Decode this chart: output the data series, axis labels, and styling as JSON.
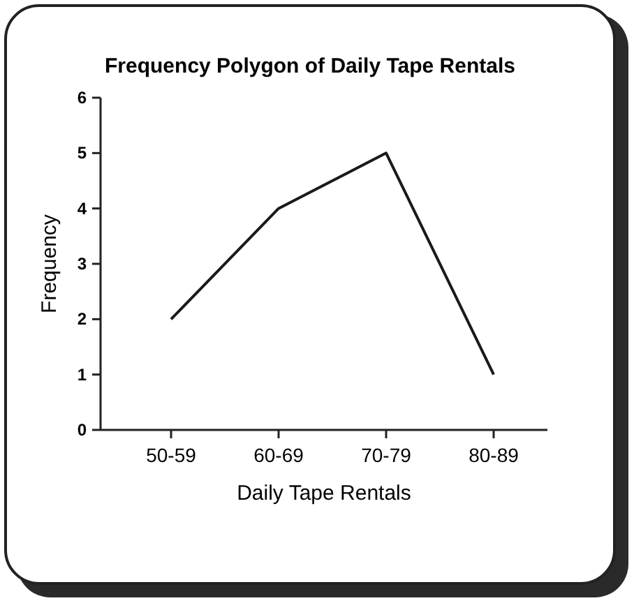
{
  "chart_data": {
    "type": "line",
    "title": "Frequency Polygon of Daily Tape Rentals",
    "xlabel": "Daily Tape Rentals",
    "ylabel": "Frequency",
    "categories": [
      "50-59",
      "60-69",
      "70-79",
      "80-89"
    ],
    "series": [
      {
        "color": "#1a1a1a",
        "values": [
          2,
          4,
          5,
          1
        ]
      }
    ],
    "ylim": [
      0,
      6
    ],
    "yticks": [
      0,
      1,
      2,
      3,
      4,
      5,
      6
    ],
    "grid": false,
    "marker": "none",
    "line_style": "solid"
  }
}
